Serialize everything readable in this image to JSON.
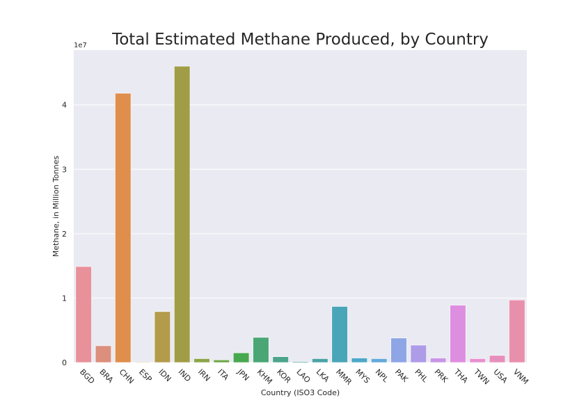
{
  "chart_data": {
    "type": "bar",
    "title": "Total Estimated Methane Produced, by Country",
    "xlabel": "Country (ISO3 Code)",
    "ylabel": "Methane, in Million Tonnes",
    "y_offset_label": "1e7",
    "grid": true,
    "ylim": [
      0,
      48500000
    ],
    "y_ticks": [
      0,
      10000000,
      20000000,
      30000000,
      40000000
    ],
    "y_tick_labels": [
      "0",
      "1",
      "2",
      "3",
      "4"
    ],
    "categories": [
      "BGD",
      "BRA",
      "CHN",
      "ESP",
      "IDN",
      "IND",
      "IRN",
      "ITA",
      "JPN",
      "KHM",
      "KOR",
      "LAO",
      "LKA",
      "MMR",
      "MYS",
      "NPL",
      "PAK",
      "PHL",
      "PRK",
      "THA",
      "TWN",
      "USA",
      "VNM"
    ],
    "values": [
      14900000,
      2600000,
      41800000,
      100000,
      7900000,
      46000000,
      600000,
      400000,
      1500000,
      3900000,
      900000,
      150000,
      600000,
      8700000,
      700000,
      600000,
      3800000,
      2700000,
      700000,
      8900000,
      600000,
      1100000,
      9700000
    ],
    "colors": [
      "#e8919b",
      "#dc8f7c",
      "#e08e4c",
      "#c99c4c",
      "#b49b4c",
      "#a19d47",
      "#8da447",
      "#6ea545",
      "#47a84f",
      "#4aa775",
      "#4aa58c",
      "#4aa39a",
      "#4aa3a7",
      "#49a5b8",
      "#4ca8c8",
      "#63a9dc",
      "#8ea6e6",
      "#ae9ce8",
      "#c896e5",
      "#de8ee0",
      "#e691cf",
      "#e78fbc",
      "#e88fac"
    ]
  }
}
